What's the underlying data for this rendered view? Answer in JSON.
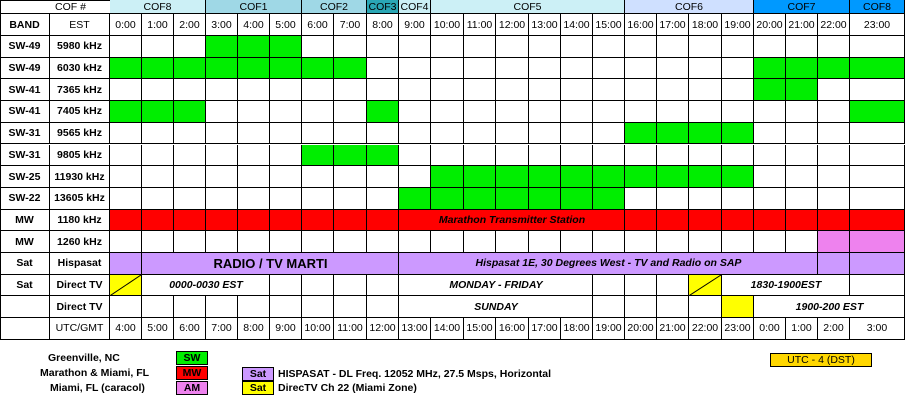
{
  "header": {
    "cof_title": "COF #",
    "band": "BAND",
    "est": "EST"
  },
  "colors": {
    "sw": "#00ee00",
    "mw": "#ff0000",
    "am": "#ee82ee",
    "sat": "#cc99ff",
    "dtv": "#ffff00",
    "cof_light": "#ccf0f6",
    "cof_mid": "#9fd8e6",
    "cof_teal": "#2aa7b5",
    "cof_pale": "#cfe0ff",
    "cof_blue": "#0099ff"
  },
  "cof_groups": [
    {
      "label": "COF8",
      "start": 1,
      "len": 3,
      "color": "#ccf0f6"
    },
    {
      "label": "COF1",
      "start": 4,
      "len": 3,
      "color": "#9fd8e6"
    },
    {
      "label": "COF2",
      "start": 7,
      "len": 2,
      "color": "#9fd8e6"
    },
    {
      "label": "COF3",
      "start": 9,
      "len": 1,
      "color": "#2aa7b5"
    },
    {
      "label": "COF4",
      "start": 10,
      "len": 1,
      "color": "#ccf0f6"
    },
    {
      "label": "COF5",
      "start": 11,
      "len": 6,
      "color": "#ccf0f6"
    },
    {
      "label": "COF6",
      "start": 17,
      "len": 4,
      "color": "#cfe0ff"
    },
    {
      "label": "COF7",
      "start": 21,
      "len": 3,
      "color": "#0099ff"
    },
    {
      "label": "COF8",
      "start": 24,
      "len": 1,
      "color": "#0099ff"
    }
  ],
  "est_hours": [
    "0:00",
    "1:00",
    "2:00",
    "3:00",
    "4:00",
    "5:00",
    "6:00",
    "7:00",
    "8:00",
    "9:00",
    "10:00",
    "11:00",
    "12:00",
    "13:00",
    "14:00",
    "15:00",
    "16:00",
    "17:00",
    "18:00",
    "19:00",
    "20:00",
    "21:00",
    "22:00",
    "23:00"
  ],
  "rows": [
    {
      "band": "SW-49",
      "freq": "5980 kHz",
      "on": [
        3,
        4,
        5
      ]
    },
    {
      "band": "SW-49",
      "freq": "6030 kHz",
      "on": [
        0,
        1,
        2,
        3,
        4,
        5,
        6,
        7,
        20,
        21,
        22,
        23
      ]
    },
    {
      "band": "SW-41",
      "freq": "7365 kHz",
      "on": [
        20,
        21
      ]
    },
    {
      "band": "SW-41",
      "freq": "7405 kHz",
      "on": [
        0,
        1,
        2,
        8,
        23
      ]
    },
    {
      "band": "SW-31",
      "freq": "9565 kHz",
      "on": [
        16,
        17,
        18,
        19
      ]
    },
    {
      "band": "SW-31",
      "freq": "9805 kHz",
      "on": [
        6,
        7,
        8
      ]
    },
    {
      "band": "SW-25",
      "freq": "11930 kHz",
      "on": [
        10,
        11,
        12,
        13,
        14,
        15,
        16,
        17,
        18,
        19
      ]
    },
    {
      "band": "SW-22",
      "freq": "13605 kHz",
      "on": [
        9,
        10,
        11,
        12,
        13,
        14,
        15
      ]
    },
    {
      "band": "MW",
      "freq": "1180 kHz"
    },
    {
      "band": "MW",
      "freq": "1260 kHz",
      "on_am": [
        22,
        23
      ]
    },
    {
      "band": "Sat",
      "freq": "Hispasat"
    },
    {
      "band": "Sat",
      "freq": "Direct TV"
    },
    {
      "band": "",
      "freq": "Direct TV"
    }
  ],
  "labels": {
    "marathon": "Marathon Transmitter Station",
    "radio_tv_marti": "RADIO / TV MARTI",
    "hispasat_sap": "Hispasat 1E, 30 Degrees West - TV and Radio on SAP",
    "dtv_0000": "0000-0030 EST",
    "dtv_monfri": "MONDAY - FRIDAY",
    "dtv_1830": "1830-1900EST",
    "dtv_sunday": "SUNDAY",
    "dtv_1900": "1900-200 EST"
  },
  "utc": {
    "label": "UTC/GMT",
    "hours": [
      "4:00",
      "5:00",
      "6:00",
      "7:00",
      "8:00",
      "9:00",
      "10:00",
      "11:00",
      "12:00",
      "13:00",
      "14:00",
      "15:00",
      "16:00",
      "17:00",
      "18:00",
      "19:00",
      "20:00",
      "21:00",
      "22:00",
      "23:00",
      "0:00",
      "1:00",
      "2:00",
      "3:00"
    ]
  },
  "legend": {
    "greenville": "Greenville, NC",
    "marathon": "Marathon & Miami, FL",
    "miami": "Miami, FL (caracol)",
    "sw": "SW",
    "mw": "MW",
    "am": "AM",
    "sat": "Sat",
    "hispasat": "HISPASAT - DL Freq. 12052 MHz, 27.5 Msps, Horizontal",
    "directv": "DirecTV Ch 22 (Miami Zone)",
    "utc_offset": "UTC - 4 (DST)"
  }
}
